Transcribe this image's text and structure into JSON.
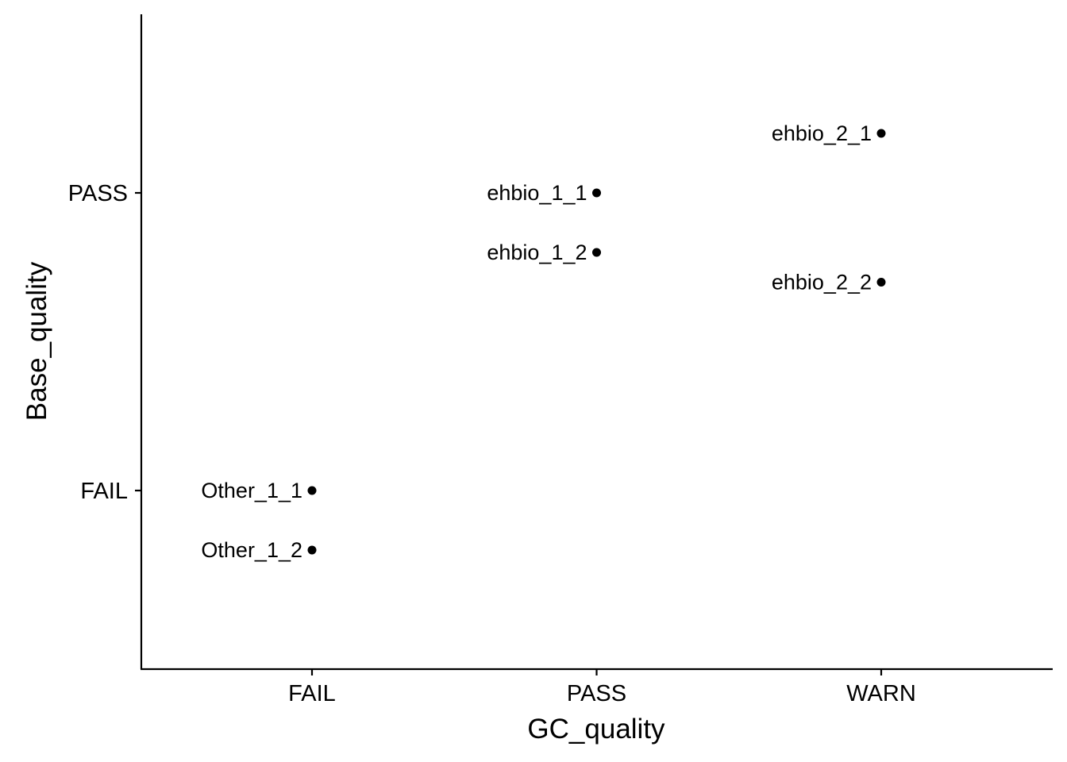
{
  "chart_data": {
    "type": "scatter",
    "title": "",
    "xlabel": "GC_quality",
    "ylabel": "Base_quality",
    "x_categories": [
      "FAIL",
      "PASS",
      "WARN"
    ],
    "y_categories": [
      "FAIL",
      "PASS"
    ],
    "ylim": [
      0.4,
      2.6
    ],
    "grid": false,
    "legend": "none",
    "points": [
      {
        "label": "ehbio_1_1",
        "x": "PASS",
        "y": 2.0
      },
      {
        "label": "ehbio_1_2",
        "x": "PASS",
        "y": 1.8
      },
      {
        "label": "ehbio_2_1",
        "x": "WARN",
        "y": 2.2
      },
      {
        "label": "ehbio_2_2",
        "x": "WARN",
        "y": 1.7
      },
      {
        "label": "Other_1_1",
        "x": "FAIL",
        "y": 1.0
      },
      {
        "label": "Other_1_2",
        "x": "FAIL",
        "y": 0.8
      }
    ],
    "colors": {
      "point": "#000000",
      "axis": "#000000"
    }
  }
}
